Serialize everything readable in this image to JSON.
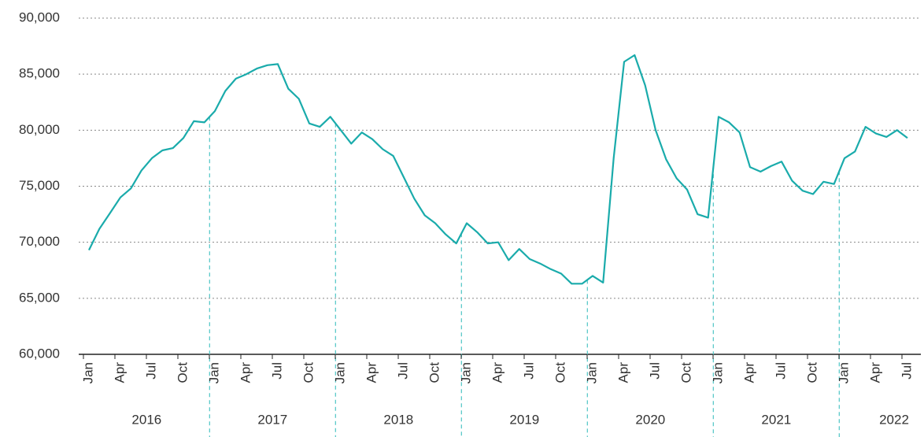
{
  "chart_data": {
    "type": "line",
    "categories": [
      "Jan",
      null,
      null,
      "Apr",
      null,
      null,
      "Jul",
      null,
      null,
      "Oct",
      null,
      null,
      "Jan",
      null,
      null,
      "Apr",
      null,
      null,
      "Jul",
      null,
      null,
      "Oct",
      null,
      null,
      "Jan",
      null,
      null,
      "Apr",
      null,
      null,
      "Jul",
      null,
      null,
      "Oct",
      null,
      null,
      "Jan",
      null,
      null,
      "Apr",
      null,
      null,
      "Jul",
      null,
      null,
      "Oct",
      null,
      null,
      "Jan",
      null,
      null,
      "Apr",
      null,
      null,
      "Jul",
      null,
      null,
      "Oct",
      null,
      null,
      "Jan",
      null,
      null,
      "Apr",
      null,
      null,
      "Jul",
      null,
      null,
      "Oct",
      null,
      null,
      "Jan",
      null,
      null,
      "Apr",
      null,
      null,
      "Jul"
    ],
    "year_labels": [
      "2016",
      "2017",
      "2018",
      "2019",
      "2020",
      "2021",
      "2022"
    ],
    "series": [
      {
        "color": "#1aabab",
        "values": [
          69300,
          71200,
          72600,
          74000,
          74800,
          76400,
          77500,
          78200,
          78400,
          79300,
          80800,
          80700,
          81700,
          83500,
          84600,
          85000,
          85500,
          85800,
          85900,
          83700,
          82800,
          80600,
          80300,
          81200,
          80000,
          78800,
          79800,
          79200,
          78300,
          77700,
          75800,
          73900,
          72400,
          71700,
          70700,
          69900,
          71700,
          70900,
          69900,
          70000,
          68400,
          69400,
          68500,
          68100,
          67600,
          67200,
          66300,
          66300,
          67000,
          66400,
          77500,
          86100,
          86700,
          84000,
          80000,
          77400,
          75700,
          74700,
          72500,
          72200,
          81200,
          80700,
          79800,
          76700,
          76300,
          76800,
          77200,
          75500,
          74600,
          74300,
          75400,
          75200,
          77500,
          78100,
          80300,
          79700,
          79400,
          80000,
          79300
        ]
      }
    ],
    "ylim": [
      60000,
      90000
    ],
    "yticks": [
      {
        "value": 60000,
        "label": "60,000"
      },
      {
        "value": 65000,
        "label": "65,000"
      },
      {
        "value": 70000,
        "label": "70,000"
      },
      {
        "value": 75000,
        "label": "75,000"
      },
      {
        "value": 80000,
        "label": "80,000"
      },
      {
        "value": 85000,
        "label": "85,000"
      },
      {
        "value": 90000,
        "label": "90,000"
      }
    ],
    "grid": true
  }
}
